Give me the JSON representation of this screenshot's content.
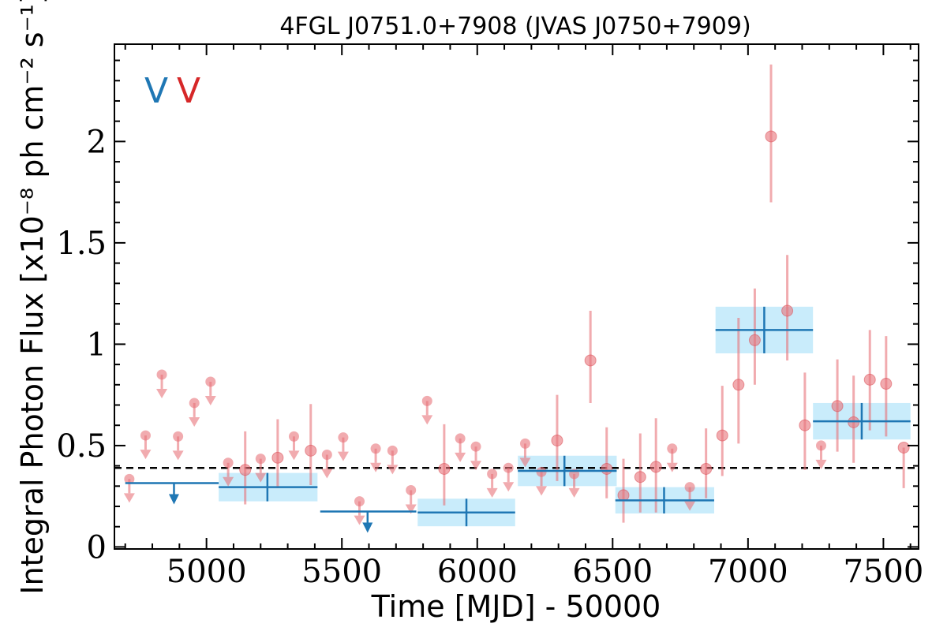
{
  "chart_data": {
    "type": "scatter",
    "title": "4FGL J0751.0+7908 (JVAS J0750+7909)",
    "xlabel": "Time [MJD] - 50000",
    "ylabel": "Integral Photon Flux [x10⁻⁸ ph cm⁻² s⁻¹]",
    "xlim": [
      4660,
      7630
    ],
    "ylim": [
      -0.01,
      2.48
    ],
    "xticks": [
      5000,
      5500,
      6000,
      6500,
      7000,
      7500
    ],
    "xtick_labels": [
      "5000",
      "5500",
      "6000",
      "6500",
      "7000",
      "7500"
    ],
    "yticks": [
      0,
      0.5,
      1,
      1.5,
      2
    ],
    "ytick_labels": [
      "0",
      "0.5",
      "1",
      "1.5",
      "2"
    ],
    "legend": {
      "placement": "top-left",
      "entries": [
        {
          "label": "V",
          "color": "#1f77b4"
        },
        {
          "label": "V",
          "color": "#d62728"
        }
      ]
    },
    "reference_line": {
      "y": 0.39,
      "style": "dashed",
      "color": "#000000"
    },
    "series": [
      {
        "color": "#e8737a",
        "style": "circle-with-errorbar",
        "points": [
          {
            "x": 5143,
            "y": 0.38,
            "err_low": 0.17,
            "err_high": 0.19
          },
          {
            "x": 5263,
            "y": 0.44,
            "err_low": 0.15,
            "err_high": 0.19
          },
          {
            "x": 5385,
            "y": 0.475,
            "err_low": 0.17,
            "err_high": 0.23
          },
          {
            "x": 5878,
            "y": 0.385,
            "err_low": 0.18,
            "err_high": 0.22
          },
          {
            "x": 6295,
            "y": 0.525,
            "err_low": 0.2,
            "err_high": 0.225
          },
          {
            "x": 6418,
            "y": 0.92,
            "err_low": 0.21,
            "err_high": 0.245
          },
          {
            "x": 6478,
            "y": 0.385,
            "err_low": 0.145,
            "err_high": 0.205
          },
          {
            "x": 6540,
            "y": 0.255,
            "err_low": 0.135,
            "err_high": 0.18
          },
          {
            "x": 6602,
            "y": 0.345,
            "err_low": 0.175,
            "err_high": 0.215
          },
          {
            "x": 6660,
            "y": 0.395,
            "err_low": 0.225,
            "err_high": 0.24
          },
          {
            "x": 6845,
            "y": 0.385,
            "err_low": 0.145,
            "err_high": 0.2
          },
          {
            "x": 6905,
            "y": 0.55,
            "err_low": 0.2,
            "err_high": 0.245
          },
          {
            "x": 6965,
            "y": 0.8,
            "err_low": 0.29,
            "err_high": 0.33
          },
          {
            "x": 7025,
            "y": 1.02,
            "err_low": 0.22,
            "err_high": 0.255
          },
          {
            "x": 7085,
            "y": 2.025,
            "err_low": 0.325,
            "err_high": 0.355
          },
          {
            "x": 7145,
            "y": 1.165,
            "err_low": 0.245,
            "err_high": 0.275
          },
          {
            "x": 7210,
            "y": 0.6,
            "err_low": 0.22,
            "err_high": 0.26
          },
          {
            "x": 7330,
            "y": 0.695,
            "err_low": 0.225,
            "err_high": 0.23
          },
          {
            "x": 7390,
            "y": 0.615,
            "err_low": 0.2,
            "err_high": 0.23
          },
          {
            "x": 7450,
            "y": 0.825,
            "err_low": 0.25,
            "err_high": 0.245
          },
          {
            "x": 7510,
            "y": 0.805,
            "err_low": 0.26,
            "err_high": 0.235
          },
          {
            "x": 7575,
            "y": 0.49,
            "err_low": 0.2,
            "err_high": 0.0
          }
        ]
      },
      {
        "color": "#e8737a",
        "style": "upper-limit",
        "points": [
          {
            "x": 4715,
            "y": 0.335
          },
          {
            "x": 4775,
            "y": 0.55
          },
          {
            "x": 4835,
            "y": 0.85
          },
          {
            "x": 4895,
            "y": 0.545
          },
          {
            "x": 4955,
            "y": 0.71
          },
          {
            "x": 5015,
            "y": 0.815
          },
          {
            "x": 5080,
            "y": 0.415
          },
          {
            "x": 5200,
            "y": 0.435
          },
          {
            "x": 5323,
            "y": 0.545
          },
          {
            "x": 5445,
            "y": 0.455
          },
          {
            "x": 5505,
            "y": 0.54
          },
          {
            "x": 5565,
            "y": 0.225
          },
          {
            "x": 5625,
            "y": 0.485
          },
          {
            "x": 5687,
            "y": 0.475
          },
          {
            "x": 5755,
            "y": 0.28
          },
          {
            "x": 5815,
            "y": 0.72
          },
          {
            "x": 5937,
            "y": 0.535
          },
          {
            "x": 5995,
            "y": 0.495
          },
          {
            "x": 6055,
            "y": 0.36
          },
          {
            "x": 6115,
            "y": 0.39
          },
          {
            "x": 6177,
            "y": 0.51
          },
          {
            "x": 6237,
            "y": 0.37
          },
          {
            "x": 6358,
            "y": 0.36
          },
          {
            "x": 6720,
            "y": 0.485
          },
          {
            "x": 6785,
            "y": 0.295
          },
          {
            "x": 7270,
            "y": 0.5
          }
        ]
      },
      {
        "color": "#1f77b4",
        "style": "binned-box",
        "box_fill": "#c9ecfb",
        "points": [
          {
            "x": 5225,
            "x_start": 5045,
            "x_end": 5410,
            "y": 0.295,
            "err": 0.07
          },
          {
            "x": 5960,
            "x_start": 5780,
            "x_end": 6140,
            "y": 0.17,
            "err": 0.068
          },
          {
            "x": 6322,
            "x_start": 6150,
            "x_end": 6515,
            "y": 0.375,
            "err": 0.075
          },
          {
            "x": 6690,
            "x_start": 6510,
            "x_end": 6875,
            "y": 0.23,
            "err": 0.065
          },
          {
            "x": 7060,
            "x_start": 6880,
            "x_end": 7240,
            "y": 1.07,
            "err": 0.115
          },
          {
            "x": 7420,
            "x_start": 7240,
            "x_end": 7600,
            "y": 0.62,
            "err": 0.09
          }
        ]
      },
      {
        "color": "#1f77b4",
        "style": "binned-upper-limit",
        "points": [
          {
            "x": 4880,
            "x_start": 4700,
            "x_end": 5045,
            "y": 0.315
          },
          {
            "x": 5595,
            "x_start": 5420,
            "x_end": 5775,
            "y": 0.175
          }
        ]
      }
    ]
  }
}
